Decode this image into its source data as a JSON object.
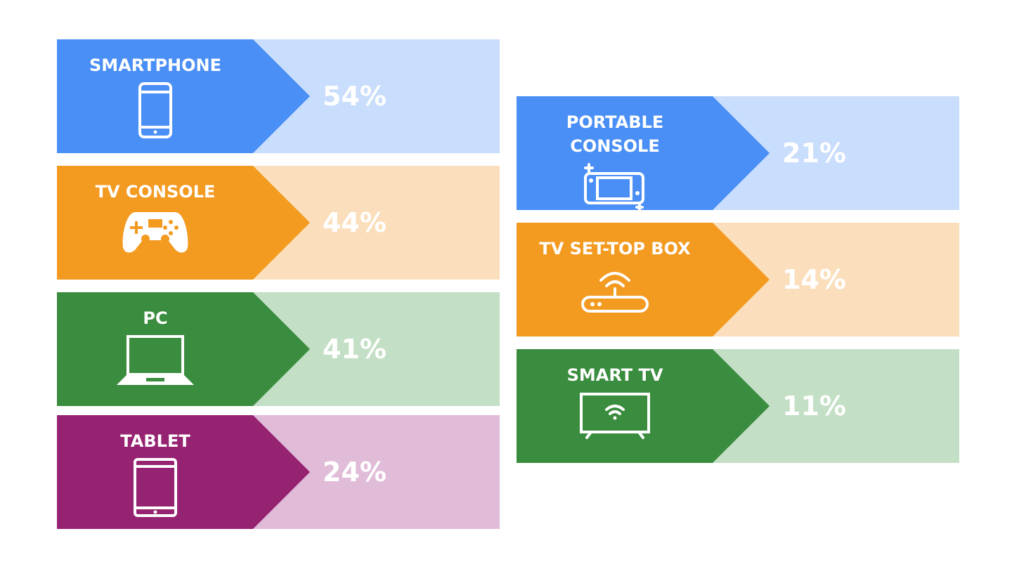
{
  "columns": [
    {
      "cards": [
        {
          "label": "SMARTPHONE",
          "value": "54%",
          "color": "#4a8ff5",
          "background": "#c9ddfc"
        },
        {
          "label": "TV CONSOLE",
          "value": "44%",
          "color": "#f39a20",
          "background": "#fbdfbd"
        },
        {
          "label": "PC",
          "value": "41%",
          "color": "#3a8c3e",
          "background": "#c3dfc5"
        },
        {
          "label": "TABLET",
          "value": "24%",
          "color": "#962272",
          "background": "#e0bcd8"
        }
      ]
    },
    {
      "cards": [
        {
          "label": "PORTABLE CONSOLE",
          "value": "21%",
          "color": "#4a8ff5",
          "background": "#c9ddfc"
        },
        {
          "label": "TV SET-TOP BOX",
          "value": "14%",
          "color": "#f39a20",
          "background": "#fbdfbd"
        },
        {
          "label": "SMART TV",
          "value": "11%",
          "color": "#3a8c3e",
          "background": "#c3dfc5"
        }
      ]
    }
  ]
}
